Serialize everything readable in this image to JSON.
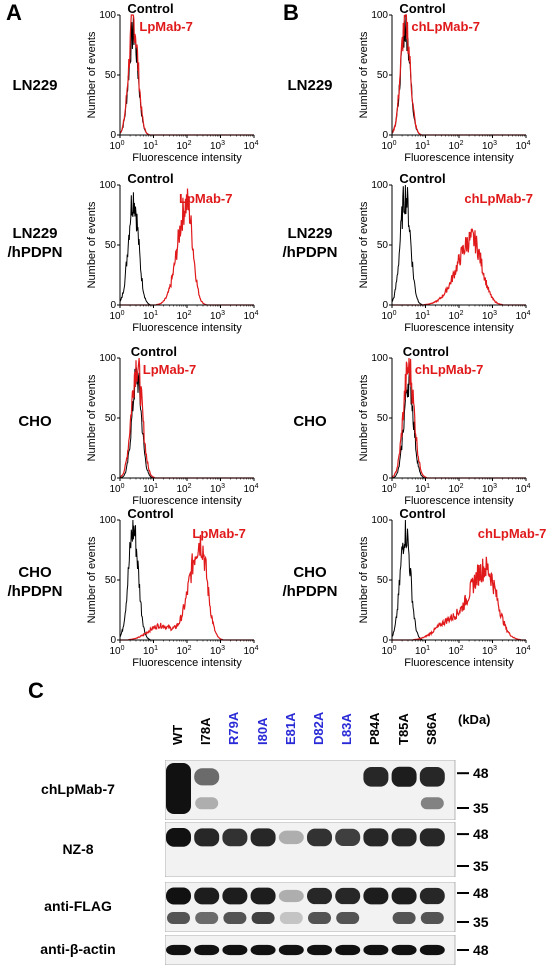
{
  "panels": {
    "a": "A",
    "b": "B",
    "c": "C"
  },
  "rows": [
    {
      "label_line1": "LN229",
      "label_line2": ""
    },
    {
      "label_line1": "LN229",
      "label_line2": "/hPDPN"
    },
    {
      "label_line1": "CHO",
      "label_line2": ""
    },
    {
      "label_line1": "CHO",
      "label_line2": "/hPDPN"
    }
  ],
  "histogram": {
    "xlabel": "Fluorescence intensity",
    "ylabel": "Number of events",
    "yticks": [
      "100",
      "50",
      "0"
    ],
    "xticks": [
      "10",
      "10",
      "10",
      "10",
      "10"
    ],
    "xtick_exp": [
      "0",
      "1",
      "2",
      "3",
      "4"
    ],
    "control_label": "Control",
    "colors": {
      "control": "#000000",
      "sample": "#e0191b"
    }
  },
  "chart_data": [
    {
      "type": "area",
      "panel": "A",
      "row": "LN229",
      "series": [
        {
          "name": "Control",
          "peak_log10": 0.4
        },
        {
          "name": "LpMab-7",
          "peak_log10": 0.4
        }
      ],
      "xlim": [
        0,
        4
      ],
      "ylim": [
        0,
        100
      ]
    },
    {
      "type": "area",
      "panel": "A",
      "row": "LN229/hPDPN",
      "series": [
        {
          "name": "Control",
          "peak_log10": 0.4
        },
        {
          "name": "LpMab-7",
          "peak_log10": 2.0
        }
      ],
      "xlim": [
        0,
        4
      ],
      "ylim": [
        0,
        100
      ]
    },
    {
      "type": "area",
      "panel": "A",
      "row": "CHO",
      "series": [
        {
          "name": "Control",
          "peak_log10": 0.5
        },
        {
          "name": "LpMab-7",
          "peak_log10": 0.5
        }
      ],
      "xlim": [
        0,
        4
      ],
      "ylim": [
        0,
        100
      ]
    },
    {
      "type": "area",
      "panel": "A",
      "row": "CHO/hPDPN",
      "series": [
        {
          "name": "Control",
          "peak_log10": 0.4
        },
        {
          "name": "LpMab-7",
          "peak_log10": 2.4
        }
      ],
      "xlim": [
        0,
        4
      ],
      "ylim": [
        0,
        100
      ]
    },
    {
      "type": "area",
      "panel": "B",
      "row": "LN229",
      "series": [
        {
          "name": "Control",
          "peak_log10": 0.4
        },
        {
          "name": "chLpMab-7",
          "peak_log10": 0.4
        }
      ],
      "xlim": [
        0,
        4
      ],
      "ylim": [
        0,
        100
      ]
    },
    {
      "type": "area",
      "panel": "B",
      "row": "LN229/hPDPN",
      "series": [
        {
          "name": "Control",
          "peak_log10": 0.4
        },
        {
          "name": "chLpMab-7",
          "peak_log10": 2.4
        }
      ],
      "xlim": [
        0,
        4
      ],
      "ylim": [
        0,
        100
      ]
    },
    {
      "type": "area",
      "panel": "B",
      "row": "CHO",
      "series": [
        {
          "name": "Control",
          "peak_log10": 0.5
        },
        {
          "name": "chLpMab-7",
          "peak_log10": 0.5
        }
      ],
      "xlim": [
        0,
        4
      ],
      "ylim": [
        0,
        100
      ]
    },
    {
      "type": "area",
      "panel": "B",
      "row": "CHO/hPDPN",
      "series": [
        {
          "name": "Control",
          "peak_log10": 0.4
        },
        {
          "name": "chLpMab-7",
          "peak_log10": 2.8
        }
      ],
      "xlim": [
        0,
        4
      ],
      "ylim": [
        0,
        100
      ]
    }
  ],
  "mab_labels": {
    "A": "LpMab-7",
    "B": "chLpMab-7"
  },
  "blot": {
    "lanes": [
      {
        "label": "WT",
        "color": "#000000"
      },
      {
        "label": "I78A",
        "color": "#000000"
      },
      {
        "label": "R79A",
        "color": "#2a2ad6"
      },
      {
        "label": "I80A",
        "color": "#2a2ad6"
      },
      {
        "label": "E81A",
        "color": "#2a2ad6"
      },
      {
        "label": "D82A",
        "color": "#2a2ad6"
      },
      {
        "label": "L83A",
        "color": "#2a2ad6"
      },
      {
        "label": "P84A",
        "color": "#000000"
      },
      {
        "label": "T85A",
        "color": "#000000"
      },
      {
        "label": "S86A",
        "color": "#000000"
      }
    ],
    "unit": "(kDa)",
    "strips": [
      {
        "label": "chLpMab-7",
        "markers": [
          "48",
          "35"
        ]
      },
      {
        "label": "NZ-8",
        "markers": [
          "48",
          "35"
        ]
      },
      {
        "label": "anti-FLAG",
        "markers": [
          "48",
          "35"
        ]
      },
      {
        "label": "anti-β-actin",
        "markers": [
          "48"
        ]
      }
    ]
  }
}
